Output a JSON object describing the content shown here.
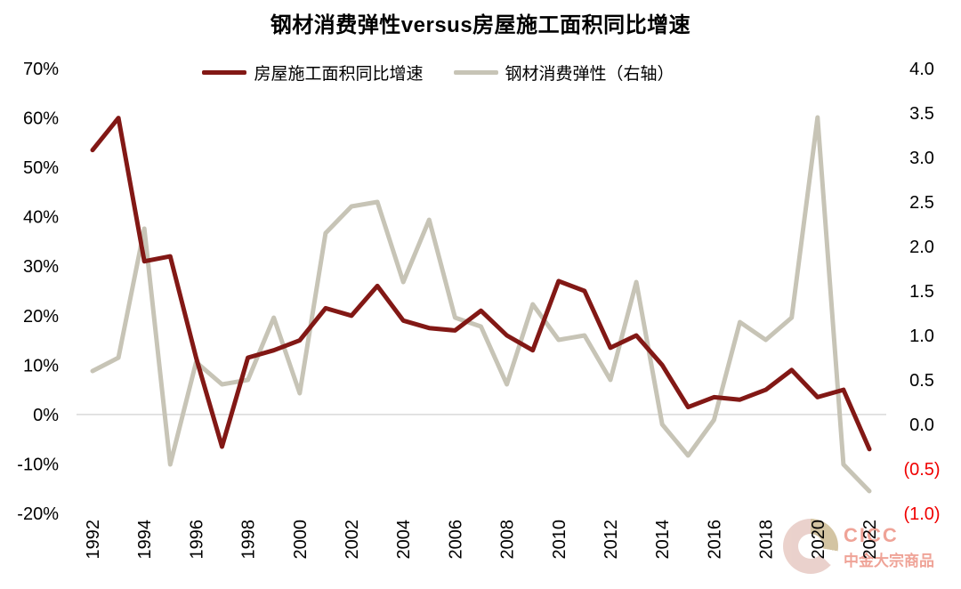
{
  "title": "钢材消费弹性versus房屋施工面积同比增速",
  "legend": [
    {
      "label": "房屋施工面积同比增速",
      "color": "#821815"
    },
    {
      "label": "钢材消费弹性（右轴）",
      "color": "#c7c4b6"
    }
  ],
  "watermark": {
    "brand": "CICC",
    "brand_cn": "中金大宗商品"
  },
  "colors": {
    "series_left": "#821815",
    "series_right": "#c7c4b6",
    "gridline": "#d9d9d9",
    "axis_text": "#000000",
    "negative_right_axis_text": "#f00000"
  },
  "chart_data": {
    "type": "line",
    "x": [
      1992,
      1993,
      1994,
      1995,
      1996,
      1997,
      1998,
      1999,
      2000,
      2001,
      2002,
      2003,
      2004,
      2005,
      2006,
      2007,
      2008,
      2009,
      2010,
      2011,
      2012,
      2013,
      2014,
      2015,
      2016,
      2017,
      2018,
      2019,
      2020,
      2021,
      2022
    ],
    "x_tick_labels": [
      "1992",
      "1994",
      "1996",
      "1998",
      "2000",
      "2002",
      "2004",
      "2006",
      "2008",
      "2010",
      "2012",
      "2014",
      "2016",
      "2018",
      "2020",
      "2022"
    ],
    "series": [
      {
        "name": "房屋施工面积同比增速",
        "axis": "left",
        "color": "#821815",
        "values": [
          53.5,
          60,
          31,
          32,
          11.5,
          -6.5,
          11.5,
          13,
          15,
          21.5,
          20,
          26,
          19,
          17.5,
          17,
          21,
          16,
          13,
          27,
          25,
          13.5,
          16,
          10,
          1.5,
          3.5,
          3,
          5,
          9,
          3.5,
          5,
          -7
        ]
      },
      {
        "name": "钢材消费弹性（右轴）",
        "axis": "right",
        "color": "#c7c4b6",
        "values": [
          0.6,
          0.75,
          2.2,
          -0.45,
          0.7,
          0.45,
          0.5,
          1.2,
          0.35,
          2.15,
          2.45,
          2.5,
          1.6,
          2.3,
          1.2,
          1.1,
          0.45,
          1.35,
          0.95,
          1.0,
          0.5,
          1.6,
          0.0,
          -0.35,
          0.05,
          1.15,
          0.95,
          1.2,
          3.45,
          -0.45,
          -0.75
        ]
      }
    ],
    "left_axis": {
      "max": 70,
      "min": -20,
      "tick_step": 10,
      "tick_labels": [
        "70%",
        "60%",
        "50%",
        "40%",
        "30%",
        "20%",
        "10%",
        "0%",
        "-10%",
        "-20%"
      ],
      "unit": "%"
    },
    "right_axis": {
      "max": 4.0,
      "min": -1.0,
      "tick_step": 0.5,
      "tick_labels": [
        "4.0",
        "3.5",
        "3.0",
        "2.5",
        "2.0",
        "1.5",
        "1.0",
        "0.5",
        "0.0",
        "(0.5)",
        "(1.0)"
      ]
    },
    "gridlines_left_values": [
      0
    ],
    "legend_position": "top",
    "grid": "zero-line-only"
  }
}
